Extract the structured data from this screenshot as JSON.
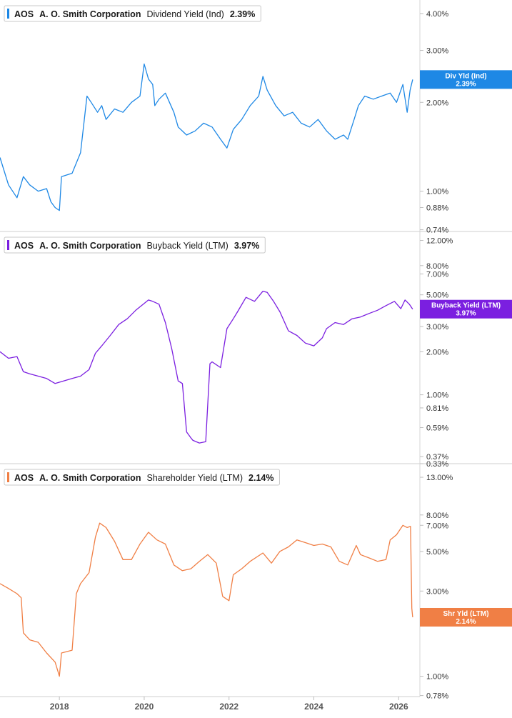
{
  "chart_data": [
    {
      "type": "line",
      "ticker": "AOS",
      "company": "A. O. Smith Corporation",
      "metric": "Dividend Yield (Ind)",
      "current_value": "2.39%",
      "badge_lines": [
        "Div Yld (Ind)",
        "2.39%"
      ],
      "color": "#1e88e5",
      "scale": "log",
      "ylim": [
        0.73,
        4.3
      ],
      "y_ticks": [
        {
          "value": 4.0,
          "label": "4.00%"
        },
        {
          "value": 3.0,
          "label": "3.00%"
        },
        {
          "value": 2.0,
          "label": "2.00%"
        },
        {
          "value": 1.0,
          "label": "1.00%"
        },
        {
          "value": 0.88,
          "label": "0.88%"
        },
        {
          "value": 0.74,
          "label": "0.74%"
        }
      ],
      "series": [
        {
          "x": [
            2016.6,
            2016.8,
            2017.0,
            2017.15,
            2017.3,
            2017.5,
            2017.7,
            2017.8,
            2017.9,
            2018.0,
            2018.05,
            2018.3,
            2018.5,
            2018.65,
            2018.75,
            2018.9,
            2019.0,
            2019.1,
            2019.3,
            2019.5,
            2019.7,
            2019.9,
            2020.0,
            2020.1,
            2020.2,
            2020.25,
            2020.35,
            2020.5,
            2020.7,
            2020.8,
            2021.0,
            2021.2,
            2021.4,
            2021.6,
            2021.8,
            2021.95,
            2022.1,
            2022.3,
            2022.5,
            2022.7,
            2022.8,
            2022.9,
            2023.1,
            2023.3,
            2023.5,
            2023.7,
            2023.9,
            2024.1,
            2024.3,
            2024.5,
            2024.7,
            2024.8,
            2024.95,
            2025.05,
            2025.2,
            2025.4,
            2025.6,
            2025.8,
            2025.95,
            2026.1,
            2026.2,
            2026.27,
            2026.33
          ],
          "values": [
            1.3,
            1.05,
            0.95,
            1.12,
            1.05,
            1.0,
            1.02,
            0.92,
            0.88,
            0.86,
            1.12,
            1.15,
            1.35,
            2.1,
            2.0,
            1.85,
            1.95,
            1.75,
            1.9,
            1.85,
            2.0,
            2.1,
            2.7,
            2.4,
            2.3,
            1.95,
            2.05,
            2.15,
            1.85,
            1.65,
            1.55,
            1.6,
            1.7,
            1.65,
            1.5,
            1.4,
            1.62,
            1.75,
            1.95,
            2.1,
            2.45,
            2.2,
            1.95,
            1.8,
            1.85,
            1.7,
            1.65,
            1.75,
            1.6,
            1.5,
            1.55,
            1.5,
            1.75,
            1.95,
            2.1,
            2.05,
            2.1,
            2.15,
            2.0,
            2.3,
            1.85,
            2.2,
            2.39
          ]
        }
      ]
    },
    {
      "type": "line",
      "ticker": "AOS",
      "company": "A. O. Smith Corporation",
      "metric": "Buyback Yield (LTM)",
      "current_value": "3.97%",
      "badge_lines": [
        "Buyback Yield (LTM)",
        "3.97%"
      ],
      "color": "#7b1fe0",
      "scale": "log",
      "ylim": [
        0.33,
        12.5
      ],
      "y_ticks": [
        {
          "value": 12.0,
          "label": "12.00%"
        },
        {
          "value": 8.0,
          "label": "8.00%"
        },
        {
          "value": 7.0,
          "label": "7.00%"
        },
        {
          "value": 5.0,
          "label": "5.00%"
        },
        {
          "value": 3.0,
          "label": "3.00%"
        },
        {
          "value": 2.0,
          "label": "2.00%"
        },
        {
          "value": 1.0,
          "label": "1.00%"
        },
        {
          "value": 0.81,
          "label": "0.81%"
        },
        {
          "value": 0.59,
          "label": "0.59%"
        },
        {
          "value": 0.37,
          "label": "0.37%"
        },
        {
          "value": 0.33,
          "label": "0.33%"
        }
      ],
      "series": [
        {
          "x": [
            2016.6,
            2016.8,
            2017.0,
            2017.15,
            2017.3,
            2017.5,
            2017.7,
            2017.9,
            2018.1,
            2018.3,
            2018.5,
            2018.7,
            2018.85,
            2019.0,
            2019.2,
            2019.4,
            2019.6,
            2019.8,
            2020.0,
            2020.1,
            2020.2,
            2020.35,
            2020.5,
            2020.65,
            2020.8,
            2020.9,
            2021.0,
            2021.1,
            2021.15,
            2021.3,
            2021.45,
            2021.55,
            2021.6,
            2021.8,
            2021.95,
            2022.1,
            2022.2,
            2022.4,
            2022.6,
            2022.8,
            2022.9,
            2023.05,
            2023.2,
            2023.4,
            2023.6,
            2023.8,
            2024.0,
            2024.2,
            2024.3,
            2024.5,
            2024.7,
            2024.9,
            2025.1,
            2025.3,
            2025.5,
            2025.7,
            2025.9,
            2026.05,
            2026.15,
            2026.25,
            2026.33
          ],
          "values": [
            2.0,
            1.8,
            1.85,
            1.45,
            1.4,
            1.35,
            1.3,
            1.2,
            1.25,
            1.3,
            1.35,
            1.5,
            1.95,
            2.2,
            2.6,
            3.1,
            3.4,
            3.9,
            4.35,
            4.6,
            4.5,
            4.3,
            3.2,
            2.1,
            1.25,
            1.2,
            0.55,
            0.5,
            0.48,
            0.46,
            0.47,
            1.65,
            1.7,
            1.55,
            2.9,
            3.4,
            3.8,
            4.8,
            4.5,
            5.3,
            5.2,
            4.5,
            3.8,
            2.8,
            2.6,
            2.3,
            2.2,
            2.5,
            2.9,
            3.2,
            3.1,
            3.4,
            3.5,
            3.7,
            3.9,
            4.2,
            4.5,
            4.0,
            4.6,
            4.3,
            3.97
          ]
        }
      ]
    },
    {
      "type": "line",
      "ticker": "AOS",
      "company": "A. O. Smith Corporation",
      "metric": "Shareholder Yield (LTM)",
      "current_value": "2.14%",
      "badge_lines": [
        "Shr Yld (LTM)",
        "2.14%"
      ],
      "color": "#f07f45",
      "scale": "log",
      "ylim": [
        0.77,
        14.0
      ],
      "y_ticks": [
        {
          "value": 13.0,
          "label": "13.00%"
        },
        {
          "value": 8.0,
          "label": "8.00%"
        },
        {
          "value": 7.0,
          "label": "7.00%"
        },
        {
          "value": 5.0,
          "label": "5.00%"
        },
        {
          "value": 3.0,
          "label": "3.00%"
        },
        {
          "value": 1.0,
          "label": "1.00%"
        },
        {
          "value": 0.78,
          "label": "0.78%"
        }
      ],
      "series": [
        {
          "x": [
            2016.6,
            2016.8,
            2017.0,
            2017.1,
            2017.15,
            2017.3,
            2017.5,
            2017.7,
            2017.9,
            2018.0,
            2018.05,
            2018.3,
            2018.4,
            2018.5,
            2018.7,
            2018.85,
            2018.95,
            2019.1,
            2019.3,
            2019.5,
            2019.7,
            2019.9,
            2020.1,
            2020.3,
            2020.5,
            2020.7,
            2020.9,
            2021.1,
            2021.3,
            2021.5,
            2021.7,
            2021.85,
            2022.0,
            2022.1,
            2022.3,
            2022.5,
            2022.8,
            2023.0,
            2023.2,
            2023.4,
            2023.6,
            2023.8,
            2024.0,
            2024.2,
            2024.4,
            2024.6,
            2024.8,
            2025.0,
            2025.1,
            2025.3,
            2025.5,
            2025.7,
            2025.8,
            2025.95,
            2026.1,
            2026.2,
            2026.28,
            2026.31,
            2026.33
          ],
          "values": [
            3.3,
            3.1,
            2.9,
            2.75,
            1.75,
            1.6,
            1.55,
            1.35,
            1.2,
            1.0,
            1.35,
            1.4,
            2.9,
            3.3,
            3.8,
            6.0,
            7.2,
            6.8,
            5.7,
            4.5,
            4.5,
            5.5,
            6.4,
            5.8,
            5.5,
            4.2,
            3.9,
            4.0,
            4.4,
            4.8,
            4.3,
            2.8,
            2.65,
            3.7,
            4.0,
            4.4,
            4.9,
            4.3,
            5.0,
            5.3,
            5.8,
            5.6,
            5.4,
            5.5,
            5.3,
            4.4,
            4.2,
            5.4,
            4.8,
            4.6,
            4.4,
            4.5,
            5.8,
            6.2,
            7.0,
            6.8,
            6.9,
            2.4,
            2.14
          ]
        }
      ]
    }
  ],
  "x_axis": {
    "range": [
      2016.6,
      2026.5
    ],
    "ticks": [
      {
        "value": 2018,
        "label": "2018"
      },
      {
        "value": 2020,
        "label": "2020"
      },
      {
        "value": 2022,
        "label": "2022"
      },
      {
        "value": 2024,
        "label": "2024"
      },
      {
        "value": 2026,
        "label": "2026"
      }
    ]
  }
}
